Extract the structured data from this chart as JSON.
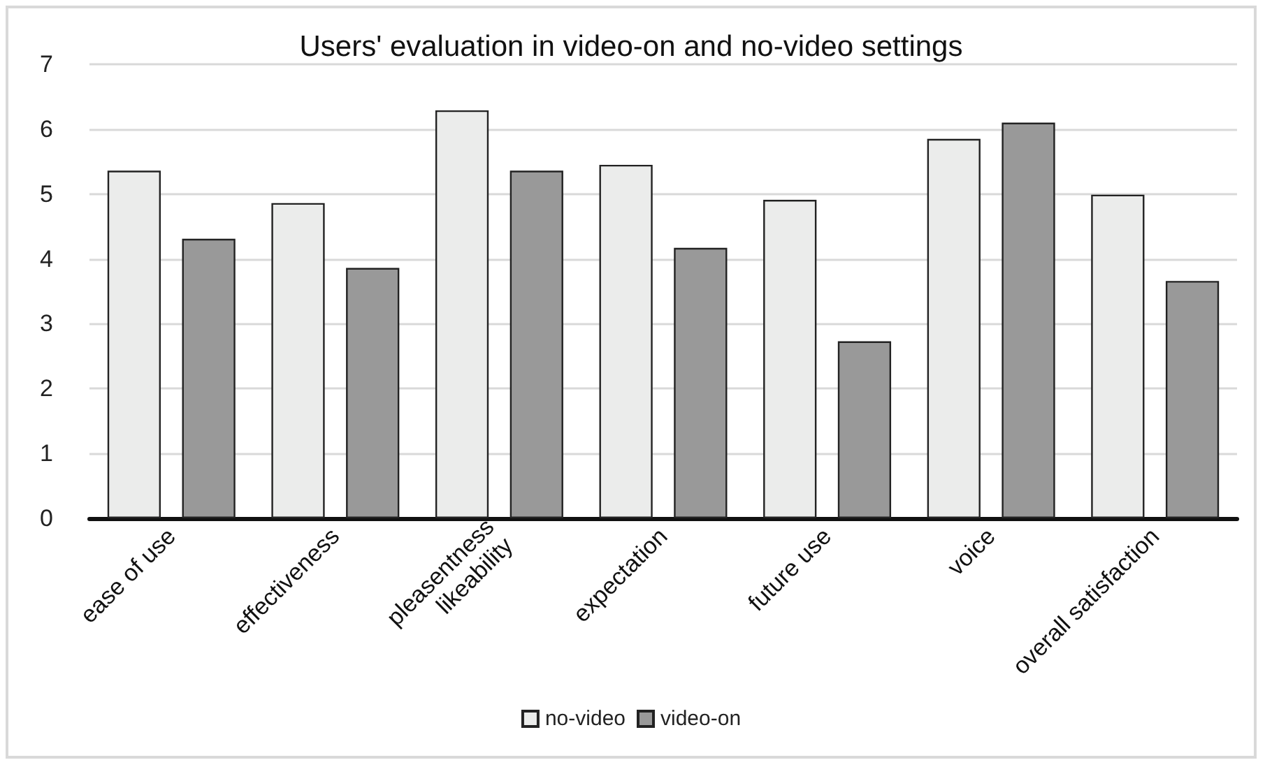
{
  "chart_data": {
    "type": "bar",
    "title": "Users' evaluation in video-on and no-video settings",
    "categories": [
      "ease of use",
      "effectiveness",
      "pleasentness\nlikeability",
      "expectation",
      "future use",
      "voice",
      "overall satisfaction"
    ],
    "series": [
      {
        "name": "no-video",
        "color": "#ebeceb",
        "values": [
          5.36,
          4.86,
          6.29,
          5.45,
          4.91,
          5.85,
          4.99
        ]
      },
      {
        "name": "video-on",
        "color": "#999999",
        "values": [
          4.31,
          3.86,
          5.36,
          4.17,
          2.73,
          6.1,
          3.66
        ]
      }
    ],
    "ylim": [
      0,
      7
    ],
    "yticks": [
      0,
      1,
      2,
      3,
      4,
      5,
      6,
      7
    ],
    "grid": "y",
    "legend": "bottom"
  }
}
